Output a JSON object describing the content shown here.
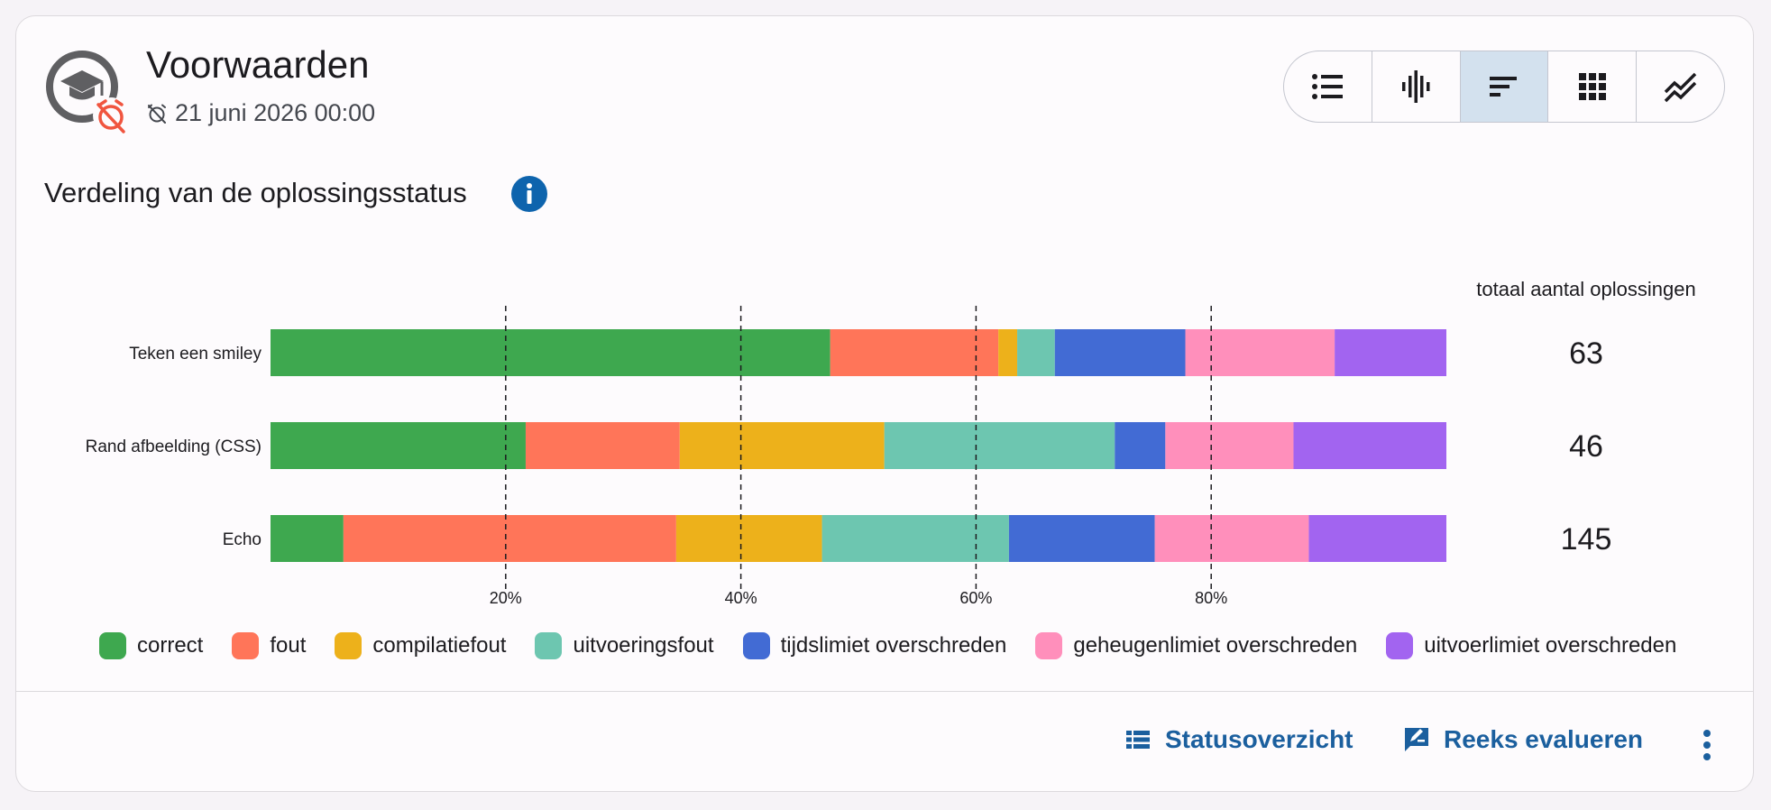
{
  "header": {
    "title": "Voorwaarden",
    "deadline": "21 juni 2026 00:00",
    "course_icon": "school-graduation-icon",
    "deadline_icon": "alarm-off-icon"
  },
  "view_toggle": {
    "buttons": [
      {
        "icon": "list-icon",
        "active": false
      },
      {
        "icon": "waveform-icon",
        "active": false
      },
      {
        "icon": "stacked-bars-icon",
        "active": true
      },
      {
        "icon": "grid-icon",
        "active": false
      },
      {
        "icon": "trend-lines-icon",
        "active": false
      }
    ]
  },
  "chart_title": "Verdeling van de oplossingsstatus",
  "total_header": "totaal aantal oplossingen",
  "chart_data": {
    "type": "bar",
    "orientation": "horizontal",
    "stacked": true,
    "normalized": true,
    "categories": [
      "Teken een smiley",
      "Rand afbeelding (CSS)",
      "Echo"
    ],
    "series": [
      {
        "name": "correct",
        "color": "#3ea84f",
        "values": [
          0.476,
          0.217,
          0.062
        ]
      },
      {
        "name": "fout",
        "color": "#ff7559",
        "values": [
          0.143,
          0.131,
          0.283
        ]
      },
      {
        "name": "compilatiefout",
        "color": "#edb11b",
        "values": [
          0.016,
          0.174,
          0.124
        ]
      },
      {
        "name": "uitvoeringsfout",
        "color": "#6dc6b0",
        "values": [
          0.032,
          0.196,
          0.159
        ]
      },
      {
        "name": "tijdslimiet overschreden",
        "color": "#426bd4",
        "values": [
          0.111,
          0.043,
          0.124
        ]
      },
      {
        "name": "geheugenlimiet overschreden",
        "color": "#ff8fbb",
        "values": [
          0.127,
          0.109,
          0.131
        ]
      },
      {
        "name": "uitvoerlimiet overschreden",
        "color": "#a264f0",
        "values": [
          0.095,
          0.13,
          0.117
        ]
      }
    ],
    "totals": [
      "63",
      "46",
      "145"
    ],
    "xticks": [
      "20%",
      "40%",
      "60%",
      "80%"
    ],
    "xtick_values": [
      0.2,
      0.4,
      0.6,
      0.8
    ],
    "xlim": [
      0,
      1
    ],
    "gridlines": "dashed vertical"
  },
  "actions": {
    "status_label": "Statusoverzicht",
    "evaluate_label": "Reeks evalueren",
    "more_icon": "more-vert-icon"
  }
}
